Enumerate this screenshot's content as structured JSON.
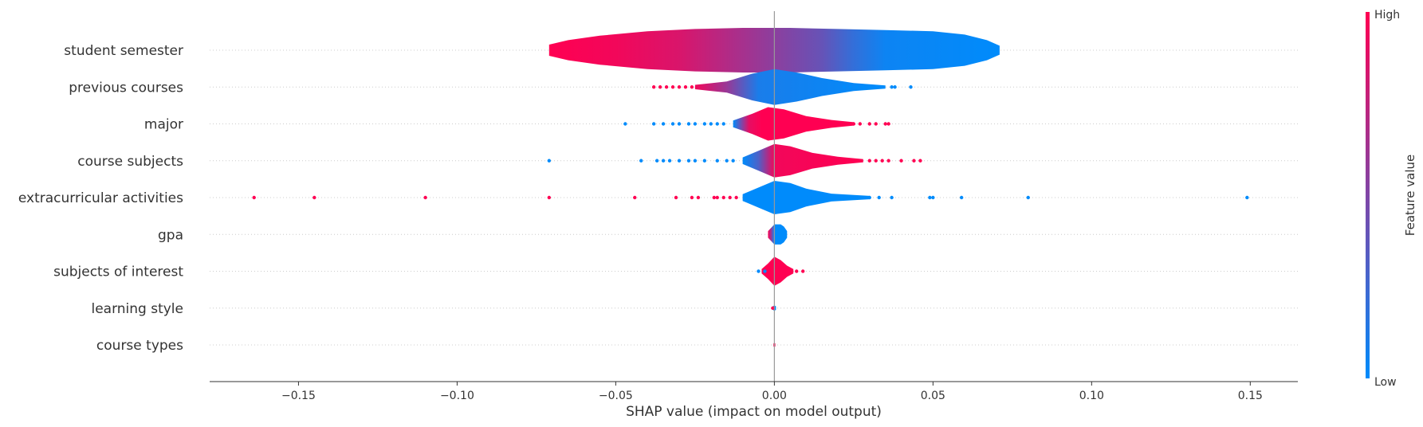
{
  "chart_data": {
    "type": "violin",
    "xlabel": "SHAP value (impact on model output)",
    "xlim": [
      -0.178,
      0.165
    ],
    "xticks": [
      {
        "value": -0.15,
        "label": "−0.15"
      },
      {
        "value": -0.1,
        "label": "−0.10"
      },
      {
        "value": -0.05,
        "label": "−0.05"
      },
      {
        "value": 0.0,
        "label": "0.00"
      },
      {
        "value": 0.05,
        "label": "0.05"
      },
      {
        "value": 0.1,
        "label": "0.10"
      },
      {
        "value": 0.15,
        "label": "0.15"
      }
    ],
    "colorbar": {
      "title": "Feature value",
      "high_label": "High",
      "low_label": "Low",
      "high_color": "#ff0052",
      "low_color": "#008bfb"
    },
    "features": [
      {
        "name": "student semester",
        "violin": [
          [
            -0.071,
            0.5
          ],
          [
            -0.065,
            0.9
          ],
          [
            -0.055,
            1.3
          ],
          [
            -0.04,
            1.7
          ],
          [
            -0.025,
            1.9
          ],
          [
            -0.01,
            2.0
          ],
          [
            0.005,
            2.0
          ],
          [
            0.02,
            1.9
          ],
          [
            0.035,
            1.8
          ],
          [
            0.05,
            1.7
          ],
          [
            0.06,
            1.4
          ],
          [
            0.067,
            0.9
          ],
          [
            0.071,
            0.4
          ]
        ],
        "color_stops": [
          [
            -0.071,
            1.0
          ],
          [
            -0.05,
            0.95
          ],
          [
            -0.03,
            0.85
          ],
          [
            -0.015,
            0.7
          ],
          [
            0.0,
            0.55
          ],
          [
            0.015,
            0.4
          ],
          [
            0.025,
            0.2
          ],
          [
            0.035,
            0.05
          ],
          [
            0.071,
            0.0
          ]
        ],
        "points": []
      },
      {
        "name": "previous courses",
        "violin": [
          [
            -0.025,
            0.2
          ],
          [
            -0.015,
            0.5
          ],
          [
            -0.007,
            1.2
          ],
          [
            0.0,
            1.6
          ],
          [
            0.007,
            1.3
          ],
          [
            0.015,
            0.8
          ],
          [
            0.025,
            0.35
          ],
          [
            0.035,
            0.15
          ]
        ],
        "color_stops": [
          [
            -0.04,
            1.0
          ],
          [
            -0.025,
            0.95
          ],
          [
            -0.015,
            0.6
          ],
          [
            -0.005,
            0.1
          ],
          [
            0.035,
            0.0
          ]
        ],
        "points": [
          [
            -0.038,
            1
          ],
          [
            -0.036,
            1
          ],
          [
            -0.034,
            1
          ],
          [
            -0.032,
            1
          ],
          [
            -0.03,
            1
          ],
          [
            -0.028,
            1
          ],
          [
            -0.026,
            1
          ],
          [
            0.022,
            0
          ],
          [
            0.024,
            0
          ],
          [
            0.026,
            0
          ],
          [
            0.028,
            0
          ],
          [
            0.03,
            0
          ],
          [
            0.032,
            0
          ],
          [
            0.034,
            0
          ],
          [
            0.037,
            0
          ],
          [
            0.038,
            0
          ],
          [
            0.043,
            0
          ]
        ]
      },
      {
        "name": "major",
        "violin": [
          [
            -0.013,
            0.3
          ],
          [
            -0.007,
            0.9
          ],
          [
            -0.002,
            1.5
          ],
          [
            0.003,
            1.3
          ],
          [
            0.01,
            0.7
          ],
          [
            0.018,
            0.35
          ],
          [
            0.025,
            0.15
          ]
        ],
        "color_stops": [
          [
            -0.013,
            0.0
          ],
          [
            -0.008,
            0.9
          ],
          [
            -0.004,
            1.0
          ],
          [
            0.03,
            1.0
          ]
        ],
        "points": [
          [
            -0.047,
            0
          ],
          [
            -0.038,
            0
          ],
          [
            -0.035,
            0
          ],
          [
            -0.032,
            0
          ],
          [
            -0.03,
            0
          ],
          [
            -0.027,
            0
          ],
          [
            -0.025,
            0
          ],
          [
            -0.022,
            0
          ],
          [
            -0.02,
            0
          ],
          [
            -0.018,
            0
          ],
          [
            -0.016,
            0
          ],
          [
            0.015,
            1
          ],
          [
            0.017,
            1
          ],
          [
            0.019,
            1
          ],
          [
            0.021,
            1
          ],
          [
            0.023,
            1
          ],
          [
            0.025,
            1
          ],
          [
            0.027,
            1
          ],
          [
            0.03,
            1
          ],
          [
            0.032,
            1
          ],
          [
            0.035,
            1
          ],
          [
            0.036,
            1
          ]
        ]
      },
      {
        "name": "course subjects",
        "violin": [
          [
            -0.01,
            0.3
          ],
          [
            -0.005,
            0.9
          ],
          [
            0.0,
            1.5
          ],
          [
            0.005,
            1.3
          ],
          [
            0.012,
            0.7
          ],
          [
            0.02,
            0.35
          ],
          [
            0.028,
            0.15
          ]
        ],
        "color_stops": [
          [
            -0.01,
            0.0
          ],
          [
            -0.005,
            0.3
          ],
          [
            0.0,
            0.95
          ],
          [
            0.03,
            1.0
          ]
        ],
        "points": [
          [
            -0.071,
            0
          ],
          [
            -0.042,
            0
          ],
          [
            -0.037,
            0
          ],
          [
            -0.035,
            0
          ],
          [
            -0.033,
            0
          ],
          [
            -0.03,
            0
          ],
          [
            -0.027,
            0
          ],
          [
            -0.025,
            0
          ],
          [
            -0.022,
            0
          ],
          [
            -0.018,
            0
          ],
          [
            -0.015,
            0
          ],
          [
            -0.013,
            0
          ],
          [
            0.015,
            1
          ],
          [
            0.018,
            1
          ],
          [
            0.02,
            1
          ],
          [
            0.022,
            1
          ],
          [
            0.024,
            1
          ],
          [
            0.026,
            1
          ],
          [
            0.03,
            1
          ],
          [
            0.032,
            1
          ],
          [
            0.034,
            1
          ],
          [
            0.036,
            1
          ],
          [
            0.04,
            1
          ],
          [
            0.044,
            1
          ],
          [
            0.046,
            1
          ]
        ]
      },
      {
        "name": "extracurricular activities",
        "violin": [
          [
            -0.01,
            0.3
          ],
          [
            -0.005,
            0.9
          ],
          [
            0.0,
            1.5
          ],
          [
            0.005,
            1.3
          ],
          [
            0.01,
            0.8
          ],
          [
            0.018,
            0.35
          ],
          [
            0.03,
            0.15
          ]
        ],
        "color_stops": [
          [
            -0.01,
            0.0
          ],
          [
            0.05,
            0.0
          ]
        ],
        "points": [
          [
            -0.164,
            1
          ],
          [
            -0.145,
            1
          ],
          [
            -0.11,
            1
          ],
          [
            -0.071,
            1
          ],
          [
            -0.044,
            1
          ],
          [
            -0.031,
            1
          ],
          [
            -0.026,
            1
          ],
          [
            -0.024,
            1
          ],
          [
            -0.019,
            1
          ],
          [
            -0.018,
            1
          ],
          [
            -0.016,
            1
          ],
          [
            -0.014,
            1
          ],
          [
            -0.012,
            1
          ],
          [
            0.01,
            0
          ],
          [
            0.012,
            0
          ],
          [
            0.015,
            0
          ],
          [
            0.018,
            0
          ],
          [
            0.02,
            0
          ],
          [
            0.023,
            0
          ],
          [
            0.025,
            0
          ],
          [
            0.028,
            0
          ],
          [
            0.03,
            0
          ],
          [
            0.033,
            0
          ],
          [
            0.037,
            0
          ],
          [
            0.049,
            0
          ],
          [
            0.05,
            0
          ],
          [
            0.059,
            0
          ],
          [
            0.08,
            0
          ],
          [
            0.149,
            0
          ]
        ]
      },
      {
        "name": "gpa",
        "violin": [
          [
            -0.002,
            0.3
          ],
          [
            -0.001,
            0.6
          ],
          [
            0.0,
            0.9
          ],
          [
            0.002,
            0.9
          ],
          [
            0.003,
            0.7
          ],
          [
            0.004,
            0.3
          ]
        ],
        "color_stops": [
          [
            -0.002,
            1.0
          ],
          [
            -0.001,
            0.6
          ],
          [
            0.0,
            0.0
          ],
          [
            0.004,
            0.0
          ]
        ],
        "points": []
      },
      {
        "name": "subjects of interest",
        "violin": [
          [
            -0.004,
            0.2
          ],
          [
            -0.002,
            0.7
          ],
          [
            0.0,
            1.3
          ],
          [
            0.002,
            1.0
          ],
          [
            0.004,
            0.5
          ],
          [
            0.006,
            0.2
          ]
        ],
        "color_stops": [
          [
            -0.004,
            1.0
          ],
          [
            0.009,
            1.0
          ]
        ],
        "points": [
          [
            -0.005,
            0
          ],
          [
            -0.003,
            0
          ],
          [
            0.005,
            1
          ],
          [
            0.007,
            1
          ],
          [
            0.009,
            1
          ]
        ]
      },
      {
        "name": "learning style",
        "violin": [
          [
            -0.0005,
            0.15
          ],
          [
            0.0,
            0.25
          ],
          [
            0.0005,
            0.15
          ]
        ],
        "color_stops": [
          [
            -0.0005,
            0.0
          ],
          [
            0.0005,
            0.0
          ]
        ],
        "points": [
          [
            -0.0005,
            1
          ]
        ]
      },
      {
        "name": "course types",
        "violin": [
          [
            -0.0003,
            0.12
          ],
          [
            0.0,
            0.2
          ],
          [
            0.0003,
            0.12
          ]
        ],
        "color_stops": [
          [
            -0.0003,
            1.0
          ],
          [
            0.0003,
            1.0
          ]
        ],
        "points": []
      }
    ]
  }
}
